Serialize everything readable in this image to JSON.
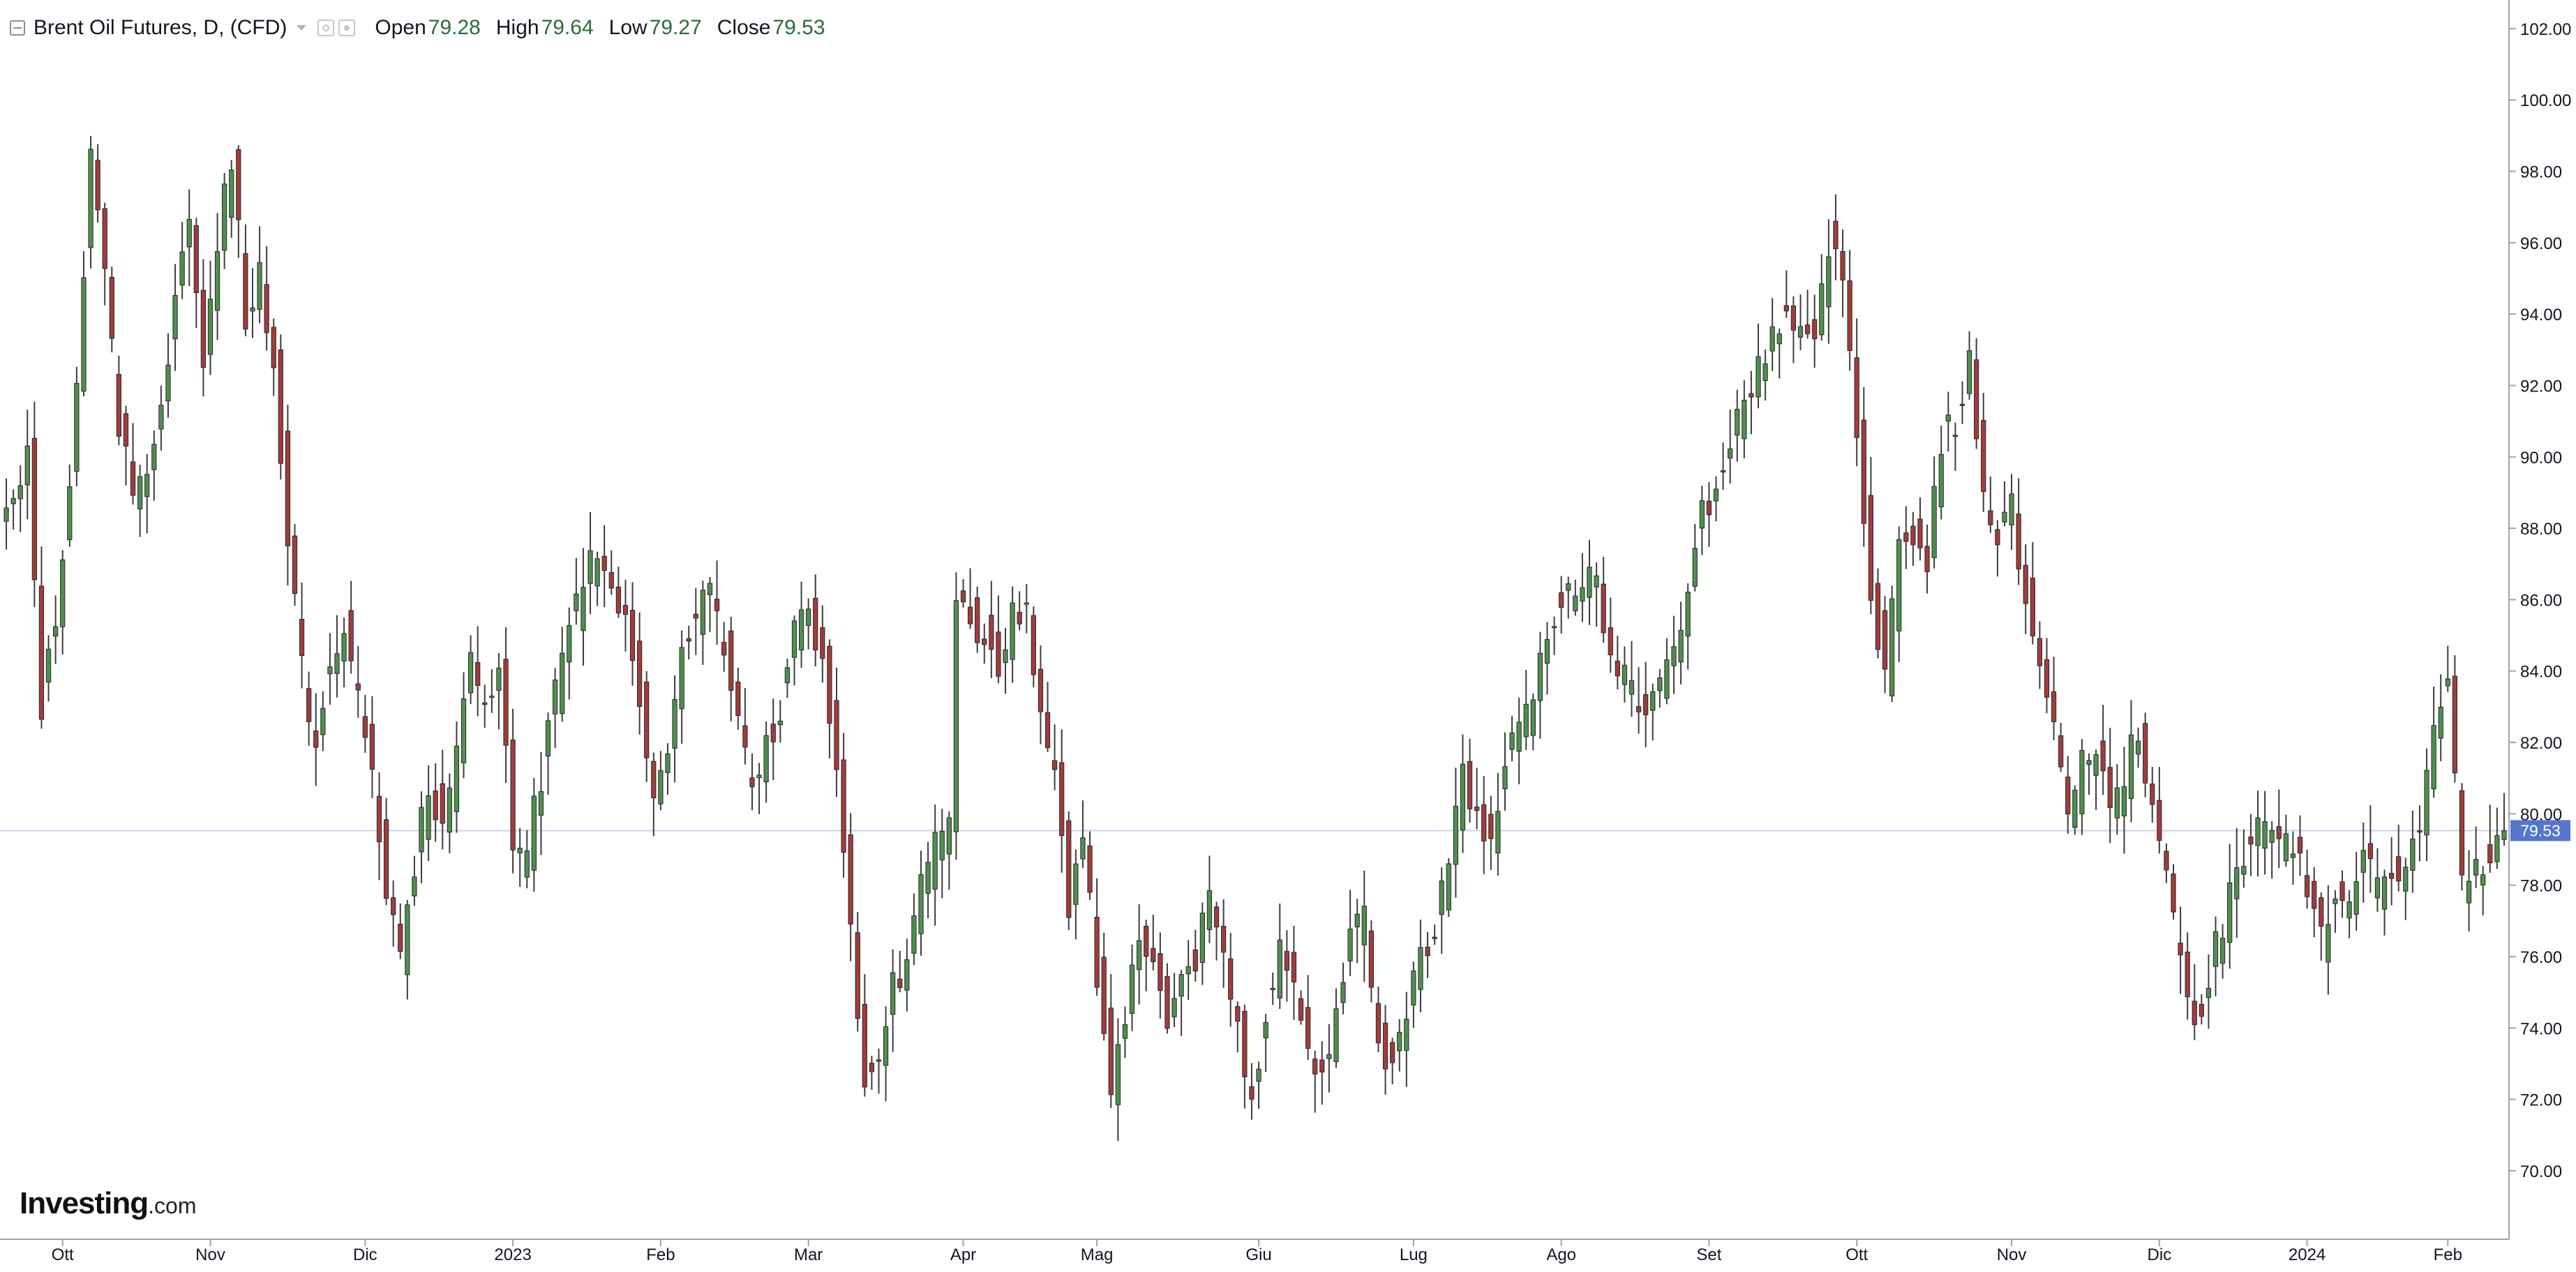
{
  "legend": {
    "title": "Brent Oil Futures, D, (CFD)",
    "open_label": "Open",
    "open_value": "79.28",
    "high_label": "High",
    "high_value": "79.64",
    "low_label": "Low",
    "low_value": "79.27",
    "close_label": "Close",
    "close_value": "79.53"
  },
  "icons": {
    "collapse": "collapse-icon",
    "dropdown": "chevron-down-icon",
    "visibility": "eye-icon",
    "settings": "gear-icon"
  },
  "branding": {
    "logo_name": "Investing",
    "logo_suffix": ".com"
  },
  "colors": {
    "up": "#4f8f4f",
    "down": "#a23c3c",
    "wick": "#3d3d3d",
    "last_price": "#5477c9",
    "axis": "#a0a3ab",
    "text": "#131722"
  },
  "chart_data": {
    "type": "candlestick",
    "title": "Brent Oil Futures, D, (CFD)",
    "last_price": 79.53,
    "last_price_label": "79.53",
    "y_ticks": [
      "102.00",
      "100.00",
      "98.00",
      "96.00",
      "94.00",
      "92.00",
      "90.00",
      "88.00",
      "86.00",
      "84.00",
      "82.00",
      "80.00",
      "78.00",
      "76.00",
      "74.00",
      "72.00",
      "70.00"
    ],
    "y_min": 68.2,
    "y_max": 102.8,
    "x_ticks": [
      "Ott",
      "Nov",
      "Dic",
      "2023",
      "Feb",
      "Mar",
      "Apr",
      "Mag",
      "Giu",
      "Lug",
      "Ago",
      "Set",
      "Ott",
      "Nov",
      "Dic",
      "2024",
      "Feb"
    ],
    "x_tick_index": [
      8,
      29,
      51,
      72,
      93,
      114,
      136,
      155,
      178,
      200,
      221,
      242,
      263,
      285,
      306,
      327,
      347
    ],
    "index_count": 356,
    "anchors": [
      [
        0,
        88.5
      ],
      [
        3,
        90.0
      ],
      [
        5,
        83.0
      ],
      [
        8,
        87.0
      ],
      [
        10,
        92.0
      ],
      [
        12,
        98.5
      ],
      [
        14,
        95.0
      ],
      [
        16,
        91.0
      ],
      [
        18,
        89.0
      ],
      [
        20,
        90.0
      ],
      [
        22,
        91.5
      ],
      [
        24,
        94.5
      ],
      [
        26,
        96.5
      ],
      [
        28,
        93.0
      ],
      [
        30,
        96.0
      ],
      [
        32,
        98.5
      ],
      [
        34,
        94.0
      ],
      [
        36,
        95.0
      ],
      [
        38,
        92.5
      ],
      [
        40,
        88.0
      ],
      [
        42,
        84.0
      ],
      [
        44,
        82.0
      ],
      [
        46,
        84.5
      ],
      [
        48,
        85.0
      ],
      [
        50,
        83.0
      ],
      [
        52,
        81.0
      ],
      [
        54,
        78.0
      ],
      [
        56,
        76.0
      ],
      [
        58,
        78.5
      ],
      [
        60,
        81.0
      ],
      [
        62,
        79.5
      ],
      [
        64,
        81.5
      ],
      [
        66,
        84.5
      ],
      [
        68,
        83.0
      ],
      [
        70,
        84.5
      ],
      [
        72,
        78.5
      ],
      [
        74,
        79.0
      ],
      [
        76,
        81.0
      ],
      [
        78,
        83.5
      ],
      [
        80,
        85.0
      ],
      [
        82,
        86.5
      ],
      [
        84,
        87.5
      ],
      [
        86,
        86.0
      ],
      [
        88,
        86.0
      ],
      [
        90,
        83.0
      ],
      [
        92,
        80.0
      ],
      [
        94,
        81.5
      ],
      [
        96,
        85.0
      ],
      [
        98,
        85.5
      ],
      [
        100,
        86.5
      ],
      [
        102,
        84.5
      ],
      [
        104,
        82.5
      ],
      [
        106,
        80.5
      ],
      [
        108,
        82.0
      ],
      [
        110,
        83.0
      ],
      [
        112,
        85.0
      ],
      [
        114,
        86.0
      ],
      [
        116,
        84.0
      ],
      [
        118,
        81.5
      ],
      [
        120,
        77.0
      ],
      [
        122,
        72.5
      ],
      [
        124,
        73.5
      ],
      [
        126,
        75.5
      ],
      [
        128,
        75.5
      ],
      [
        130,
        78.0
      ],
      [
        132,
        79.0
      ],
      [
        134,
        79.5
      ],
      [
        135,
        86.0
      ],
      [
        137,
        85.5
      ],
      [
        139,
        85.0
      ],
      [
        141,
        84.0
      ],
      [
        143,
        86.0
      ],
      [
        145,
        85.5
      ],
      [
        147,
        82.5
      ],
      [
        149,
        81.5
      ],
      [
        151,
        77.5
      ],
      [
        153,
        79.5
      ],
      [
        155,
        75.5
      ],
      [
        157,
        72.5
      ],
      [
        159,
        74.5
      ],
      [
        161,
        76.5
      ],
      [
        163,
        76.0
      ],
      [
        165,
        74.0
      ],
      [
        167,
        75.5
      ],
      [
        169,
        76.0
      ],
      [
        171,
        77.5
      ],
      [
        173,
        76.0
      ],
      [
        175,
        74.0
      ],
      [
        177,
        72.0
      ],
      [
        179,
        74.5
      ],
      [
        181,
        76.5
      ],
      [
        183,
        75.0
      ],
      [
        185,
        73.5
      ],
      [
        187,
        72.5
      ],
      [
        189,
        75.0
      ],
      [
        191,
        76.5
      ],
      [
        193,
        77.0
      ],
      [
        195,
        73.5
      ],
      [
        197,
        73.0
      ],
      [
        199,
        74.5
      ],
      [
        201,
        76.0
      ],
      [
        203,
        77.0
      ],
      [
        205,
        79.0
      ],
      [
        207,
        81.0
      ],
      [
        209,
        80.0
      ],
      [
        211,
        79.0
      ],
      [
        213,
        81.5
      ],
      [
        215,
        82.5
      ],
      [
        217,
        83.0
      ],
      [
        219,
        85.0
      ],
      [
        221,
        86.0
      ],
      [
        223,
        86.5
      ],
      [
        225,
        87.0
      ],
      [
        227,
        85.5
      ],
      [
        229,
        84.0
      ],
      [
        231,
        83.5
      ],
      [
        233,
        83.0
      ],
      [
        235,
        83.5
      ],
      [
        237,
        84.5
      ],
      [
        239,
        86.5
      ],
      [
        241,
        88.5
      ],
      [
        243,
        89.0
      ],
      [
        245,
        90.5
      ],
      [
        247,
        91.5
      ],
      [
        249,
        92.5
      ],
      [
        251,
        93.5
      ],
      [
        253,
        94.0
      ],
      [
        255,
        93.5
      ],
      [
        257,
        93.0
      ],
      [
        259,
        96.0
      ],
      [
        261,
        95.0
      ],
      [
        263,
        91.0
      ],
      [
        265,
        86.0
      ],
      [
        267,
        84.0
      ],
      [
        269,
        87.5
      ],
      [
        271,
        88.0
      ],
      [
        273,
        87.0
      ],
      [
        275,
        90.5
      ],
      [
        277,
        91.0
      ],
      [
        279,
        92.5
      ],
      [
        281,
        89.0
      ],
      [
        283,
        88.0
      ],
      [
        285,
        88.5
      ],
      [
        287,
        86.0
      ],
      [
        289,
        84.5
      ],
      [
        291,
        82.5
      ],
      [
        293,
        79.5
      ],
      [
        295,
        81.5
      ],
      [
        297,
        82.0
      ],
      [
        299,
        80.0
      ],
      [
        301,
        81.0
      ],
      [
        303,
        82.5
      ],
      [
        305,
        80.0
      ],
      [
        307,
        78.0
      ],
      [
        309,
        76.0
      ],
      [
        311,
        74.0
      ],
      [
        313,
        75.5
      ],
      [
        315,
        77.0
      ],
      [
        317,
        78.5
      ],
      [
        319,
        79.5
      ],
      [
        321,
        79.5
      ],
      [
        323,
        79.0
      ],
      [
        325,
        79.0
      ],
      [
        327,
        78.0
      ],
      [
        329,
        76.5
      ],
      [
        331,
        78.0
      ],
      [
        333,
        77.5
      ],
      [
        335,
        78.5
      ],
      [
        337,
        78.0
      ],
      [
        339,
        78.5
      ],
      [
        341,
        78.5
      ],
      [
        343,
        79.5
      ],
      [
        345,
        82.5
      ],
      [
        347,
        83.5
      ],
      [
        349,
        78.0
      ],
      [
        351,
        78.5
      ],
      [
        353,
        79.0
      ],
      [
        355,
        79.53
      ]
    ]
  }
}
